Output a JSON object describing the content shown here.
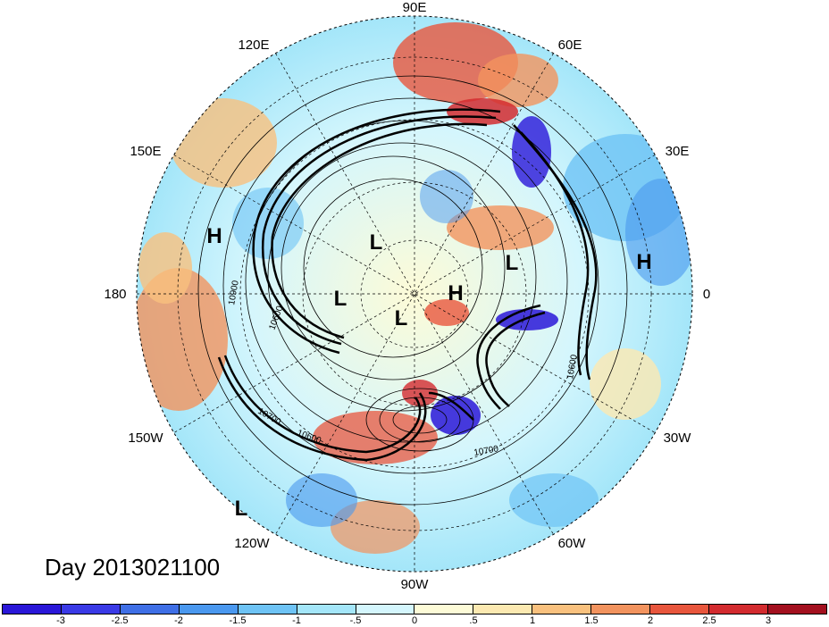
{
  "title": "Day 2013021100",
  "longitude_labels": [
    {
      "text": "90E"
    },
    {
      "text": "60E"
    },
    {
      "text": "30E"
    },
    {
      "text": "0"
    },
    {
      "text": "30W"
    },
    {
      "text": "60W"
    },
    {
      "text": "90W"
    },
    {
      "text": "120W"
    },
    {
      "text": "150W"
    },
    {
      "text": "180"
    },
    {
      "text": "150E"
    },
    {
      "text": "120E"
    }
  ],
  "pressure_centers": [
    {
      "type": "H"
    },
    {
      "type": "L"
    },
    {
      "type": "L"
    },
    {
      "type": "L"
    },
    {
      "type": "H"
    },
    {
      "type": "L"
    },
    {
      "type": "H"
    },
    {
      "type": "L"
    }
  ],
  "contour_labels": [
    "10900",
    "10600",
    "10700",
    "10600",
    "10700",
    "10600"
  ],
  "colorbar": {
    "colors": [
      "#2a17d8",
      "#3a3ae6",
      "#3f6fe6",
      "#4a98ef",
      "#6ec3f5",
      "#a4e6f9",
      "#d4f6fd",
      "#fdfbd7",
      "#fce9b1",
      "#f9c17e",
      "#f2935e",
      "#e8563d",
      "#d32b2f",
      "#a3101f"
    ],
    "labels": [
      "-3",
      "-2.5",
      "-2",
      "-1.5",
      "-1",
      "-.5",
      "0",
      ".5",
      "1",
      "1.5",
      "2",
      "2.5",
      "3"
    ]
  }
}
